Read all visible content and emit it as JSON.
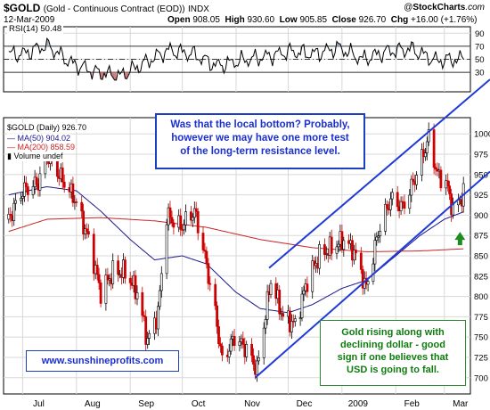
{
  "header": {
    "symbol": "$GOLD",
    "description": "(Gold - Continuous Contract (EOD))",
    "exchange": "INDX",
    "date": "12-Mar-2009",
    "open_label": "Open",
    "open": "908.05",
    "high_label": "High",
    "high": "930.60",
    "low_label": "Low",
    "low": "905.85",
    "close_label": "Close",
    "close": "926.70",
    "chg_label": "Chg",
    "chg": "+16.00 (+1.76%)",
    "brand_at": "@",
    "brand": "StockCharts",
    "brand_suffix": ".com"
  },
  "rsi_legend": {
    "name": "RSI(14)",
    "value": "50.48"
  },
  "price_legend": {
    "symbol_line": "$GOLD (Daily) 926.70",
    "ma50": "MA(50) 904.02",
    "ma200": "MA(200) 858.59",
    "volume": "Volume undef"
  },
  "annotations": {
    "top": [
      "Was that the local bottom? Probably,",
      "however we may have one more test",
      "of the long-term resistance level."
    ],
    "bottom": [
      "Gold rising along with",
      "declining dollar - good",
      "sign if one believes that",
      "USD is going to fall."
    ],
    "site": "www.sunshineprofits.com"
  },
  "colors": {
    "ma50": "#1a1a8c",
    "ma200": "#cc2222",
    "up": "#000000",
    "down": "#cc0000",
    "trend": "#1f3ad6",
    "arrow": "#1e8c1e",
    "grid": "#d8d8d8"
  },
  "chart_data": [
    {
      "type": "line",
      "title": "RSI(14)",
      "ylim": [
        0,
        100
      ],
      "ticks": [
        30,
        50,
        70,
        90
      ],
      "levels": [
        30,
        50,
        70
      ],
      "x": [
        "2008-07-01",
        "2008-07-15",
        "2008-07-29",
        "2008-08-12",
        "2008-08-26",
        "2008-09-09",
        "2008-09-23",
        "2008-10-07",
        "2008-10-21",
        "2008-11-04",
        "2008-11-18",
        "2008-12-02",
        "2008-12-16",
        "2008-12-30",
        "2009-01-13",
        "2009-01-27",
        "2009-02-10",
        "2009-02-24",
        "2009-03-12"
      ],
      "values": [
        58,
        72,
        44,
        30,
        24,
        44,
        64,
        58,
        40,
        48,
        54,
        62,
        58,
        68,
        50,
        62,
        66,
        48,
        50.48
      ]
    },
    {
      "type": "candlestick",
      "title": "$GOLD (Daily)",
      "ylim": [
        680,
        1020
      ],
      "ticks": [
        700,
        725,
        750,
        775,
        800,
        825,
        850,
        875,
        900,
        925,
        950,
        975,
        1000
      ],
      "x_labels": [
        "Jul",
        "Aug",
        "Sep",
        "Oct",
        "Nov",
        "Dec",
        "2009",
        "Feb",
        "Mar"
      ],
      "x_label_dates": [
        "2008-07-01",
        "2008-08-01",
        "2008-09-01",
        "2008-10-01",
        "2008-11-01",
        "2008-12-01",
        "2009-01-01",
        "2009-02-01",
        "2009-03-01"
      ],
      "close_path": {
        "x": [
          "2008-06-23",
          "2008-07-01",
          "2008-07-10",
          "2008-07-15",
          "2008-07-22",
          "2008-07-31",
          "2008-08-08",
          "2008-08-15",
          "2008-08-22",
          "2008-08-29",
          "2008-09-05",
          "2008-09-11",
          "2008-09-17",
          "2008-09-22",
          "2008-09-30",
          "2008-10-08",
          "2008-10-13",
          "2008-10-20",
          "2008-10-24",
          "2008-10-31",
          "2008-11-07",
          "2008-11-13",
          "2008-11-21",
          "2008-11-28",
          "2008-12-05",
          "2008-12-12",
          "2008-12-19",
          "2008-12-26",
          "2009-01-02",
          "2009-01-08",
          "2009-01-15",
          "2009-01-22",
          "2009-01-29",
          "2009-02-05",
          "2009-02-12",
          "2009-02-20",
          "2009-02-25",
          "2009-03-02",
          "2009-03-06",
          "2009-03-12"
        ],
        "values": [
          895,
          930,
          940,
          975,
          950,
          920,
          870,
          805,
          830,
          830,
          805,
          745,
          780,
          900,
          885,
          905,
          860,
          780,
          720,
          750,
          735,
          710,
          820,
          775,
          765,
          820,
          850,
          860,
          870,
          855,
          810,
          880,
          920,
          910,
          945,
          995,
          950,
          940,
          905,
          926.7
        ]
      },
      "series": [
        {
          "name": "MA(50)",
          "x": [
            "2008-06-23",
            "2008-07-15",
            "2008-08-01",
            "2008-08-15",
            "2008-09-01",
            "2008-09-15",
            "2008-10-01",
            "2008-10-15",
            "2008-11-01",
            "2008-11-15",
            "2008-12-01",
            "2008-12-15",
            "2009-01-01",
            "2009-01-15",
            "2009-02-01",
            "2009-02-15",
            "2009-03-01",
            "2009-03-12"
          ],
          "values": [
            925,
            935,
            930,
            905,
            870,
            845,
            850,
            840,
            805,
            785,
            780,
            790,
            810,
            820,
            850,
            875,
            895,
            904.02
          ]
        },
        {
          "name": "MA(200)",
          "x": [
            "2008-06-23",
            "2008-07-15",
            "2008-08-15",
            "2008-09-15",
            "2008-10-15",
            "2008-11-15",
            "2008-12-15",
            "2009-01-15",
            "2009-02-15",
            "2009-03-12"
          ],
          "values": [
            880,
            895,
            897,
            893,
            885,
            870,
            860,
            855,
            856,
            858.59
          ]
        }
      ],
      "trendlines": [
        {
          "from": [
            "2008-11-12",
            700
          ],
          "to": [
            "2009-03-12",
            925
          ]
        },
        {
          "from": [
            "2008-11-20",
            835
          ],
          "to": [
            "2009-02-24",
            1010
          ]
        }
      ]
    }
  ]
}
